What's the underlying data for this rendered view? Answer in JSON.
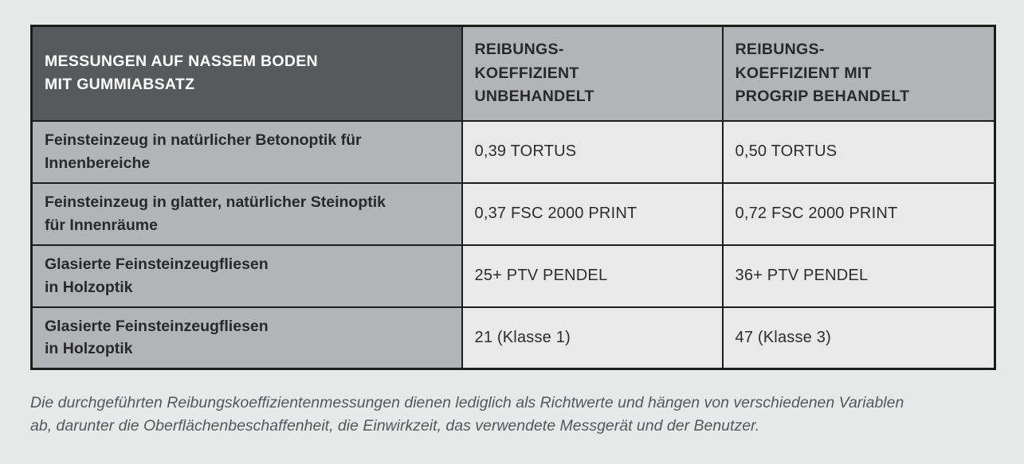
{
  "colors": {
    "page_background": "#e7e8e8",
    "header_dark_bg": "#58595b",
    "header_gray_bg": "#b2b4b6",
    "label_cell_bg": "#b2b4b6",
    "value_cell_bg": "#e9e9e9",
    "border": "#1d1d1b",
    "header_text": "#ffffff",
    "body_text": "#29292b",
    "footnote_text": "#56575b"
  },
  "table": {
    "header": {
      "col1": "MESSUNGEN AUF NASSEM BODEN\nMIT GUMMIABSATZ",
      "col2": "REIBUNGS-\nKOEFFIZIENT\nUNBEHANDELT",
      "col3": "REIBUNGS-\nKOEFFIZIENT MIT\nPROGRIP BEHANDELT"
    },
    "rows": [
      {
        "label": "Feinsteinzeug in natürlicher Betonoptik für\nInnenbereiche",
        "untreated": "0,39 TORTUS",
        "treated": "0,50 TORTUS"
      },
      {
        "label": "Feinsteinzeug in glatter, natürlicher Steinoptik\nfür Innenräume",
        "untreated": "0,37 FSC 2000 PRINT",
        "treated": "0,72 FSC 2000 PRINT"
      },
      {
        "label": "Glasierte Feinsteinzeugfliesen\nin Holzoptik",
        "untreated": "25+ PTV PENDEL",
        "treated": "36+ PTV PENDEL"
      },
      {
        "label": "Glasierte Feinsteinzeugfliesen\nin Holzoptik",
        "untreated": "21 (Klasse 1)",
        "treated": "47 (Klasse 3)"
      }
    ]
  },
  "footnote": "Die durchgeführten Reibungskoeffizientenmessungen dienen lediglich als Richtwerte und hängen von verschiedenen Variablen\nab, darunter die Oberflächenbeschaffenheit, die Einwirkzeit, das verwendete Messgerät und der Benutzer."
}
